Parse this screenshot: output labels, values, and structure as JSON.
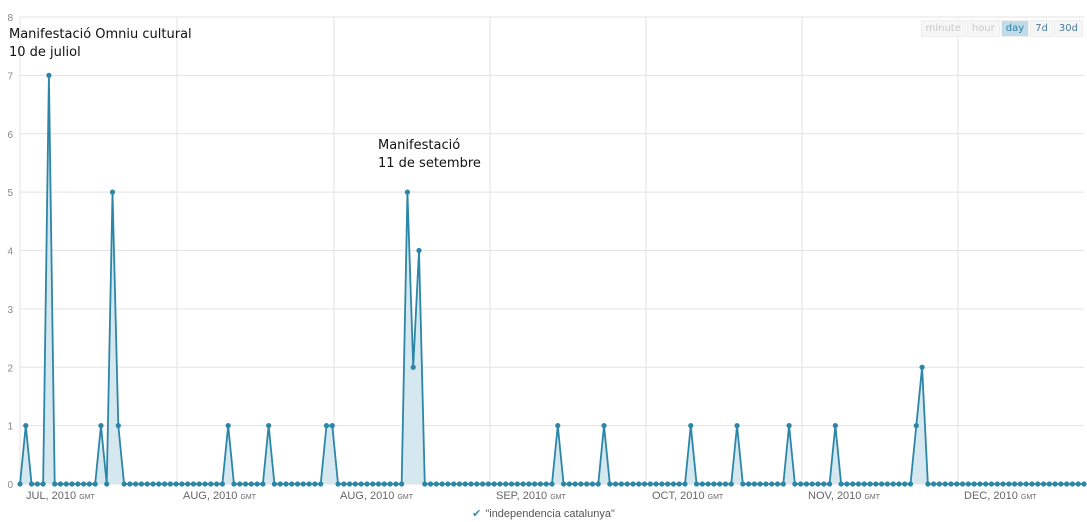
{
  "range_buttons": [
    "minute",
    "hour",
    "day",
    "7d",
    "30d"
  ],
  "range_active": "day",
  "legend_label": "\"independencia catalunya\"",
  "annotations": [
    {
      "line1": "Manifestació Omniu cultural",
      "line2": "10 de juliol"
    },
    {
      "line1": "Manifestació",
      "line2": "11 de setembre"
    }
  ],
  "colors": {
    "line": "#2c86a8",
    "area": "#d6e8ef",
    "grid": "#e3e3e3"
  },
  "chart_data": {
    "type": "area",
    "ylim": [
      0,
      8
    ],
    "yticks": [
      "0",
      "1",
      "2",
      "3",
      "4",
      "5",
      "6",
      "7",
      "8"
    ],
    "x_tick_labels": [
      {
        "text": "JUL, 2010",
        "unit": "GMT"
      },
      {
        "text": "AUG, 2010",
        "unit": "GMT"
      },
      {
        "text": "AUG, 2010",
        "unit": "GMT"
      },
      {
        "text": "SEP, 2010",
        "unit": "GMT"
      },
      {
        "text": "OCT, 2010",
        "unit": "GMT"
      },
      {
        "text": "NOV, 2010",
        "unit": "GMT"
      },
      {
        "text": "DEC, 2010",
        "unit": "GMT"
      }
    ],
    "grid": true,
    "series": [
      {
        "name": "\"independencia catalunya\"",
        "values": [
          0,
          1,
          0,
          0,
          0,
          7,
          0,
          0,
          0,
          0,
          0,
          0,
          0,
          0,
          1,
          0,
          5,
          1,
          0,
          0,
          0,
          0,
          0,
          0,
          0,
          0,
          0,
          0,
          0,
          0,
          0,
          0,
          0,
          0,
          0,
          0,
          1,
          0,
          0,
          0,
          0,
          0,
          0,
          1,
          0,
          0,
          0,
          0,
          0,
          0,
          0,
          0,
          0,
          1,
          1,
          0,
          0,
          0,
          0,
          0,
          0,
          0,
          0,
          0,
          0,
          0,
          0,
          5,
          2,
          4,
          0,
          0,
          0,
          0,
          0,
          0,
          0,
          0,
          0,
          0,
          0,
          0,
          0,
          0,
          0,
          0,
          0,
          0,
          0,
          0,
          0,
          0,
          0,
          1,
          0,
          0,
          0,
          0,
          0,
          0,
          0,
          1,
          0,
          0,
          0,
          0,
          0,
          0,
          0,
          0,
          0,
          0,
          0,
          0,
          0,
          0,
          1,
          0,
          0,
          0,
          0,
          0,
          0,
          0,
          1,
          0,
          0,
          0,
          0,
          0,
          0,
          0,
          0,
          1,
          0,
          0,
          0,
          0,
          0,
          0,
          0,
          1,
          0,
          0,
          0,
          0,
          0,
          0,
          0,
          0,
          0,
          0,
          0,
          0,
          0,
          1,
          2,
          0,
          0,
          0,
          0,
          0,
          0,
          0,
          0,
          0,
          0,
          0,
          0,
          0,
          0,
          0,
          0,
          0,
          0,
          0,
          0,
          0,
          0,
          0,
          0,
          0,
          0,
          0,
          0
        ]
      }
    ]
  }
}
